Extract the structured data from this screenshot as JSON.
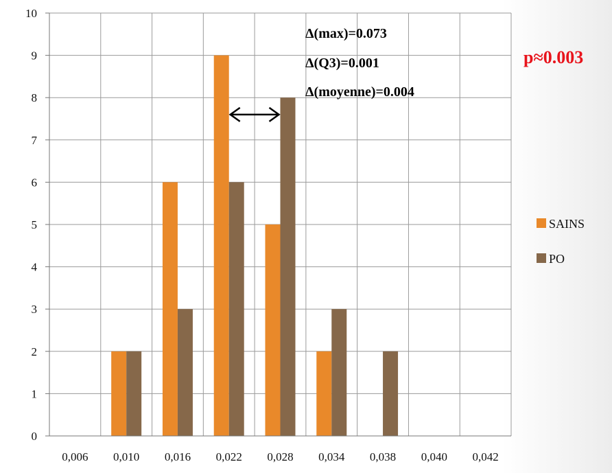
{
  "chart_data": {
    "type": "bar",
    "categories": [
      "0,006",
      "0,010",
      "0,016",
      "0,022",
      "0,028",
      "0,034",
      "0,038",
      "0,040",
      "0,042"
    ],
    "series": [
      {
        "name": "SAINS",
        "values": [
          0,
          2,
          6,
          9,
          5,
          2,
          0,
          0,
          0
        ],
        "color": "#E9892A"
      },
      {
        "name": "PO",
        "values": [
          0,
          2,
          3,
          6,
          8,
          3,
          2,
          0,
          0
        ],
        "color": "#86684A"
      }
    ],
    "ylim": [
      0,
      10
    ],
    "yticks": [
      "0",
      "1",
      "2",
      "3",
      "4",
      "5",
      "6",
      "7",
      "8",
      "9",
      "10"
    ],
    "grid": true,
    "legend_position": "right",
    "annotations": [
      "Δ(max)=0.073",
      "Δ(Q3)=0.001",
      "Δ(moyenne)=0.004"
    ],
    "p_value": "p≈0.003",
    "p_value_color": "#E8141C",
    "arrow": {
      "from_category": 3,
      "to_category": 4,
      "y": 7.6
    }
  }
}
